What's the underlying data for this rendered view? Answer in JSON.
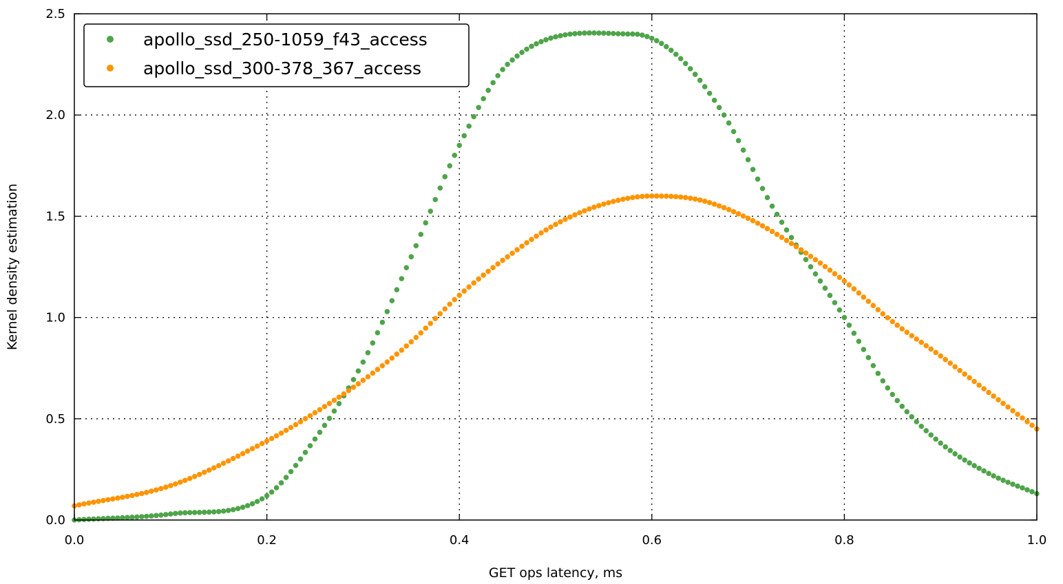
{
  "chart_data": {
    "type": "scatter",
    "title": "",
    "xlabel": "GET ops latency, ms",
    "ylabel": "Kernel density estimation",
    "xlim": [
      0.0,
      1.0
    ],
    "ylim": [
      0.0,
      2.5
    ],
    "xticks": [
      "0.0",
      "0.2",
      "0.4",
      "0.6",
      "0.8",
      "1.0"
    ],
    "yticks": [
      "0.0",
      "0.5",
      "1.0",
      "1.5",
      "2.0",
      "2.5"
    ],
    "grid": true,
    "legend_position": "top-left",
    "x_step": 0.005,
    "series": [
      {
        "name": "apollo_ssd_250-1059_f43_access",
        "color": "#4fa44a",
        "x_start": 0.0,
        "x_end": 1.0,
        "values": [
          0.0,
          0.03,
          0.12,
          0.4,
          0.78,
          1.3,
          1.85,
          2.25,
          2.4,
          2.3,
          2.0,
          1.55,
          1.0,
          0.62,
          0.38,
          0.23,
          0.13
        ],
        "x": [
          0.0,
          0.1,
          0.2,
          0.25,
          0.3,
          0.35,
          0.4,
          0.45,
          0.58,
          0.625,
          0.675,
          0.725,
          0.8,
          0.85,
          0.9,
          0.95,
          1.0
        ]
      },
      {
        "name": "apollo_ssd_300-378_367_access",
        "color": "#ff9400",
        "x": [
          0.0,
          0.1,
          0.2,
          0.25,
          0.3,
          0.35,
          0.4,
          0.45,
          0.5,
          0.55,
          0.6,
          0.65,
          0.7,
          0.75,
          0.8,
          0.85,
          0.9,
          0.95,
          1.0
        ],
        "values": [
          0.07,
          0.17,
          0.39,
          0.53,
          0.69,
          0.88,
          1.11,
          1.3,
          1.46,
          1.56,
          1.6,
          1.58,
          1.49,
          1.35,
          1.18,
          0.98,
          0.81,
          0.63,
          0.45
        ]
      }
    ]
  }
}
